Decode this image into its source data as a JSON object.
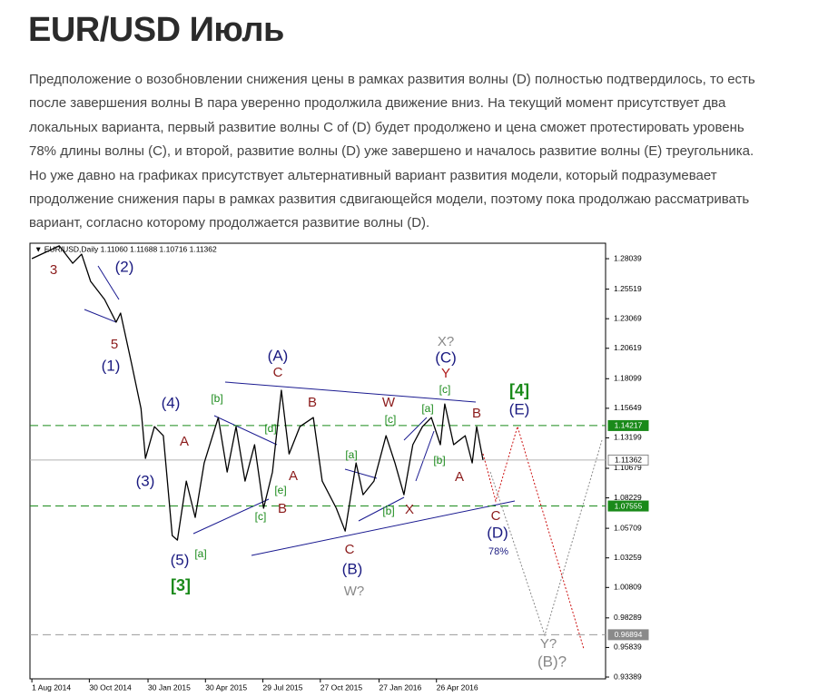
{
  "title": "EUR/USD Июль",
  "paragraph": [
    "Предположение о возобновлении снижения цены в рамках развития волны (D) полностью подтвердилось, то есть",
    "после завершения волны B пара уверенно продолжила движение вниз. На текущий момент присутствует два",
    "локальных варианта, первый развитие волны C of (D) будет продолжено и цена сможет протестировать уровень",
    "78% длины волны (C), и второй, развитие волны (D) уже завершено и началось развитие волны (E) треугольника.",
    "Но уже давно на графиках присутствует альтернативный вариант развития модели, который подразумевает",
    "продолжение снижения пары в рамках развития сдвигающейся модели, поэтому пока продолжаю рассматривать",
    "вариант, согласно которому продолжается развитие волны (D)."
  ],
  "chart_data": {
    "type": "line",
    "header": "▼ EUR/USD,Daily  1.11060 1.11688 1.10716 1.11362",
    "x": [
      "2014-08-01",
      "2014-09-13",
      "2014-10-04",
      "2014-10-18",
      "2014-11-01",
      "2014-11-23",
      "2014-12-11",
      "2014-12-18",
      "2015-01-04",
      "2015-01-19",
      "2015-01-26",
      "2015-02-09",
      "2015-02-23",
      "2015-03-09",
      "2015-03-17",
      "2015-03-31",
      "2015-04-14",
      "2015-04-28",
      "2015-05-20",
      "2015-06-03",
      "2015-06-17",
      "2015-07-01",
      "2015-07-16",
      "2015-07-30",
      "2015-08-13",
      "2015-08-27",
      "2015-09-08",
      "2015-09-25",
      "2015-10-16",
      "2015-10-30",
      "2015-11-21",
      "2015-12-05",
      "2015-12-22",
      "2016-01-02",
      "2016-01-19",
      "2016-02-07",
      "2016-02-21",
      "2016-03-06",
      "2016-03-20",
      "2016-04-04",
      "2016-04-18",
      "2016-05-02",
      "2016-05-09",
      "2016-05-23",
      "2016-06-10",
      "2016-06-21",
      "2016-06-28",
      "2016-07-08"
    ],
    "series": [
      {
        "name": "EUR/USD",
        "color": "#000000",
        "values": [
          1.2804,
          1.291,
          1.2766,
          1.2841,
          1.2616,
          1.2466,
          1.2278,
          1.2353,
          1.1939,
          1.1563,
          1.115,
          1.1413,
          1.1338,
          1.0511,
          1.0473,
          1.0962,
          1.0661,
          1.1112,
          1.1488,
          1.1037,
          1.1413,
          1.0962,
          1.1263,
          1.0737,
          1.1037,
          1.1714,
          1.1187,
          1.1413,
          1.1488,
          1.0962,
          1.0737,
          1.0548,
          1.1112,
          1.0849,
          1.0962,
          1.1338,
          1.1112,
          1.0849,
          1.1263,
          1.1413,
          1.1488,
          1.1263,
          1.1601,
          1.1263,
          1.1338,
          1.1112,
          1.1413,
          1.1136
        ]
      }
    ],
    "xlim": [
      "2014-07-29",
      "2017-01-16"
    ],
    "xticks": [
      {
        "value": "2014-08-01",
        "label": "1 Aug 2014"
      },
      {
        "value": "2014-10-30",
        "label": "30 Oct 2014"
      },
      {
        "value": "2015-01-30",
        "label": "30 Jan 2015"
      },
      {
        "value": "2015-04-30",
        "label": "30 Apr 2015"
      },
      {
        "value": "2015-07-29",
        "label": "29 Jul 2015"
      },
      {
        "value": "2015-10-27",
        "label": "27 Oct 2015"
      },
      {
        "value": "2016-01-27",
        "label": "27 Jan 2016"
      },
      {
        "value": "2016-04-26",
        "label": "26 Apr 2016"
      }
    ],
    "ylim": [
      0.9324,
      1.2932
    ],
    "yticks": [
      1.28039,
      1.25519,
      1.23069,
      1.20619,
      1.18099,
      1.15649,
      1.13199,
      1.10679,
      1.08229,
      1.05709,
      1.03259,
      1.00809,
      0.98289,
      0.95839,
      0.93389
    ],
    "levels": [
      {
        "value": 1.14217,
        "color": "#1a8a1a",
        "label_fill": "#1a8a1a",
        "label_color": "#ffffff",
        "dashed": true
      },
      {
        "value": 1.11362,
        "color": "#b0b0b0",
        "label_fill": "#ffffff",
        "label_color": "#000000",
        "dashed": false
      },
      {
        "value": 1.07555,
        "color": "#1a8a1a",
        "label_fill": "#1a8a1a",
        "label_color": "#ffffff",
        "dashed": true
      },
      {
        "value": 0.96894,
        "color": "#999999",
        "label_fill": "#8a8a8a",
        "label_color": "#ffffff",
        "dashed": true
      }
    ],
    "annotations": [
      {
        "text": "3",
        "color": "#8b1a1a"
      },
      {
        "text": "(2)",
        "color": "#1a1a80"
      },
      {
        "text": "5",
        "color": "#8b1a1a"
      },
      {
        "text": "(1)",
        "color": "#1a1a80"
      },
      {
        "text": "(4)",
        "color": "#1a1a80"
      },
      {
        "text": "A",
        "color": "#8b1a1a"
      },
      {
        "text": "(3)",
        "color": "#1a1a80"
      },
      {
        "text": "(5)",
        "color": "#1a1a80"
      },
      {
        "text": "[a]",
        "color": "#1a8a1a"
      },
      {
        "text": "[3]",
        "color": "#1a8a1a"
      },
      {
        "text": "[b]",
        "color": "#1a8a1a"
      },
      {
        "text": "[c]",
        "color": "#1a8a1a"
      },
      {
        "text": "[d]",
        "color": "#1a8a1a"
      },
      {
        "text": "[e]",
        "color": "#1a8a1a"
      },
      {
        "text": "B",
        "color": "#8b1a1a"
      },
      {
        "text": "A",
        "color": "#8b1a1a"
      },
      {
        "text": "(A)",
        "color": "#1a1a80"
      },
      {
        "text": "C",
        "color": "#8b1a1a"
      },
      {
        "text": "B",
        "color": "#8b1a1a"
      },
      {
        "text": "C",
        "color": "#8b1a1a"
      },
      {
        "text": "(B)",
        "color": "#1a1a80"
      },
      {
        "text": "W?",
        "color": "#888888"
      },
      {
        "text": "[a]",
        "color": "#1a8a1a"
      },
      {
        "text": "[b]",
        "color": "#1a8a1a"
      },
      {
        "text": "[c]",
        "color": "#1a8a1a"
      },
      {
        "text": "W",
        "color": "#8b1a1a"
      },
      {
        "text": "X",
        "color": "#8b1a1a"
      },
      {
        "text": "[a]",
        "color": "#1a8a1a"
      },
      {
        "text": "[b]",
        "color": "#1a8a1a"
      },
      {
        "text": "[c]",
        "color": "#1a8a1a"
      },
      {
        "text": "X?",
        "color": "#888888"
      },
      {
        "text": "(C)",
        "color": "#1a1a80"
      },
      {
        "text": "Y",
        "color": "#b01a1a"
      },
      {
        "text": "B",
        "color": "#8b1a1a"
      },
      {
        "text": "A",
        "color": "#8b1a1a"
      },
      {
        "text": "C",
        "color": "#8b1a1a"
      },
      {
        "text": "(D)",
        "color": "#1a1a80"
      },
      {
        "text": "78%",
        "color": "#1a1a80"
      },
      {
        "text": "[4]",
        "color": "#1a8a1a"
      },
      {
        "text": "(E)",
        "color": "#1a1a80"
      },
      {
        "text": "Y?",
        "color": "#888888"
      },
      {
        "text": "(B)?",
        "color": "#888888"
      }
    ]
  }
}
